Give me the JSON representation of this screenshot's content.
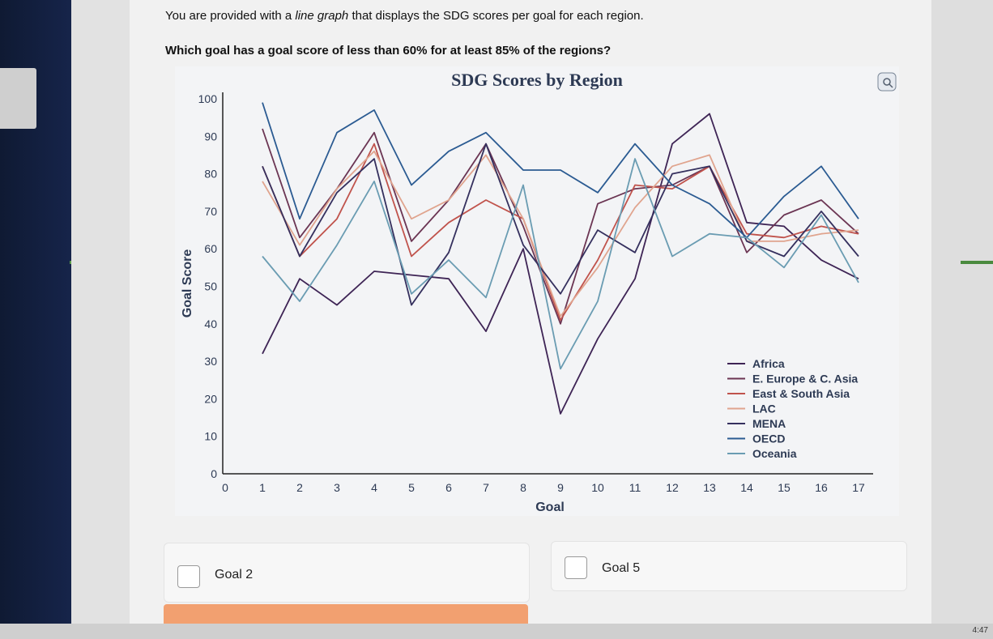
{
  "question": {
    "prompt_pre": "You are provided with a ",
    "prompt_em": "line graph",
    "prompt_post": " that displays the SDG scores per goal for each region.",
    "text": "Which goal has a goal score of less than 60% for at least 85% of the regions?"
  },
  "options": [
    {
      "label": "Goal 2",
      "checked": false
    },
    {
      "label": "Goal 5",
      "checked": false
    }
  ],
  "icons": {
    "zoom": "zoom-icon"
  },
  "taskbar": {
    "clock": "4:47"
  },
  "chart_data": {
    "type": "line",
    "title": "SDG Scores by Region",
    "xlabel": "Goal",
    "ylabel": "Goal Score",
    "xlim": [
      0,
      17.6
    ],
    "ylim": [
      0,
      100
    ],
    "x_ticks": [
      0,
      1,
      2,
      3,
      4,
      5,
      6,
      7,
      8,
      9,
      10,
      11,
      12,
      13,
      14,
      15,
      16,
      17
    ],
    "y_ticks": [
      0,
      10,
      20,
      30,
      40,
      50,
      60,
      70,
      80,
      90,
      100
    ],
    "grid": false,
    "legend_position": "bottom-right",
    "x": [
      1,
      2,
      3,
      4,
      5,
      6,
      7,
      8,
      9,
      10,
      11,
      12,
      13,
      14,
      15,
      16,
      17
    ],
    "series": [
      {
        "name": "Africa",
        "color": "#3e2455",
        "values": [
          32,
          52,
          45,
          54,
          53,
          52,
          38,
          60,
          16,
          36,
          52,
          88,
          96,
          67,
          66,
          57,
          52
        ]
      },
      {
        "name": "E. Europe & C. Asia",
        "color": "#6b3553",
        "values": [
          92,
          63,
          76,
          91,
          62,
          73,
          88,
          66,
          40,
          72,
          76,
          77,
          82,
          59,
          69,
          73,
          64
        ]
      },
      {
        "name": "East & South Asia",
        "color": "#c0534c",
        "values": [
          82,
          58,
          68,
          88,
          58,
          67,
          73,
          68,
          41,
          57,
          77,
          76,
          82,
          64,
          63,
          66,
          64
        ]
      },
      {
        "name": "LAC",
        "color": "#e0a48e",
        "values": [
          78,
          61,
          76,
          86,
          68,
          73,
          85,
          68,
          42,
          55,
          71,
          82,
          85,
          62,
          62,
          64,
          65
        ]
      },
      {
        "name": "MENA",
        "color": "#35305e",
        "values": [
          82,
          58,
          75,
          84,
          45,
          59,
          88,
          61,
          48,
          65,
          59,
          80,
          82,
          62,
          58,
          70,
          58
        ]
      },
      {
        "name": "OECD",
        "color": "#2b5b92",
        "values": [
          99,
          68,
          91,
          97,
          77,
          86,
          91,
          81,
          81,
          75,
          88,
          77,
          72,
          63,
          74,
          82,
          68
        ]
      },
      {
        "name": "Oceania",
        "color": "#6a9cb2",
        "values": [
          58,
          46,
          61,
          78,
          48,
          57,
          47,
          77,
          28,
          46,
          84,
          58,
          64,
          63,
          55,
          69,
          51
        ]
      }
    ]
  }
}
